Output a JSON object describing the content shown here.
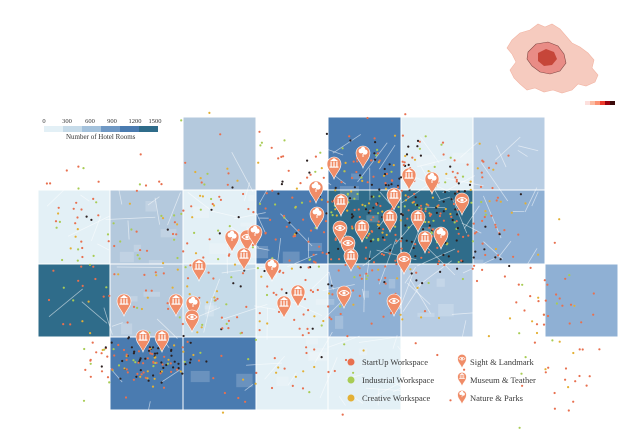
{
  "scale_legend": {
    "ticks": [
      "0",
      "300",
      "600",
      "900",
      "1200",
      "1500"
    ],
    "label": "Number of Hotel Rooms",
    "colors": [
      "#e3f0f6",
      "#c6dbe9",
      "#a4c2dc",
      "#6f98c4",
      "#4a7bb0",
      "#2f6c8a"
    ]
  },
  "grid_cells": [
    [
      0,
      0,
      "#ffffff"
    ],
    [
      0,
      1,
      "#ffffff"
    ],
    [
      0,
      2,
      "#b4c9dd"
    ],
    [
      0,
      3,
      "#ffffff"
    ],
    [
      0,
      4,
      "#4a7bb0"
    ],
    [
      0,
      5,
      "#e3f0f6"
    ],
    [
      0,
      6,
      "#b8cde3"
    ],
    [
      0,
      7,
      "#ffffff"
    ],
    [
      1,
      0,
      "#e3f0f6"
    ],
    [
      1,
      1,
      "#b4c9dd"
    ],
    [
      1,
      2,
      "#e3f0f6"
    ],
    [
      1,
      3,
      "#4a7bb0"
    ],
    [
      1,
      4,
      "#2f6c8a"
    ],
    [
      1,
      5,
      "#2f6c8a"
    ],
    [
      1,
      6,
      "#8fb0d4"
    ],
    [
      1,
      7,
      "#ffffff"
    ],
    [
      2,
      0,
      "#2f6c8a"
    ],
    [
      2,
      1,
      "#b4c9dd"
    ],
    [
      2,
      2,
      "#c6dbe9"
    ],
    [
      2,
      3,
      "#e3f0f6"
    ],
    [
      2,
      4,
      "#8fb0d4"
    ],
    [
      2,
      5,
      "#b8cde3"
    ],
    [
      2,
      6,
      "#ffffff"
    ],
    [
      2,
      7,
      "#8fb0d4"
    ],
    [
      3,
      0,
      "#ffffff"
    ],
    [
      3,
      1,
      "#4a7bb0"
    ],
    [
      3,
      2,
      "#4a7bb0"
    ],
    [
      3,
      3,
      "#e3f0f6"
    ],
    [
      3,
      4,
      "#e3f0f6"
    ],
    [
      3,
      5,
      "#ffffff"
    ],
    [
      3,
      6,
      "#ffffff"
    ],
    [
      3,
      7,
      "#ffffff"
    ]
  ],
  "poi_legend": {
    "workspaces": [
      {
        "label": "StartUp Workspace",
        "color": "#e8704f"
      },
      {
        "label": "Industrial Workspace",
        "color": "#a8cc55"
      },
      {
        "label": "Creative Workspace",
        "color": "#e3b035"
      }
    ],
    "amenities": [
      {
        "label": "Sight & Landmark",
        "icon": "eye-pin-icon"
      },
      {
        "label": "Museum & Teather",
        "icon": "museum-pin-icon"
      },
      {
        "label": "Nature & Parks",
        "icon": "tree-pin-icon"
      }
    ]
  },
  "pin_color": "#f08c67",
  "inset_map": {
    "legend_colors": [
      "#fde0dd",
      "#fcbba1",
      "#fc9272",
      "#ef3b2c",
      "#99000d",
      "#3b0a0a"
    ]
  }
}
